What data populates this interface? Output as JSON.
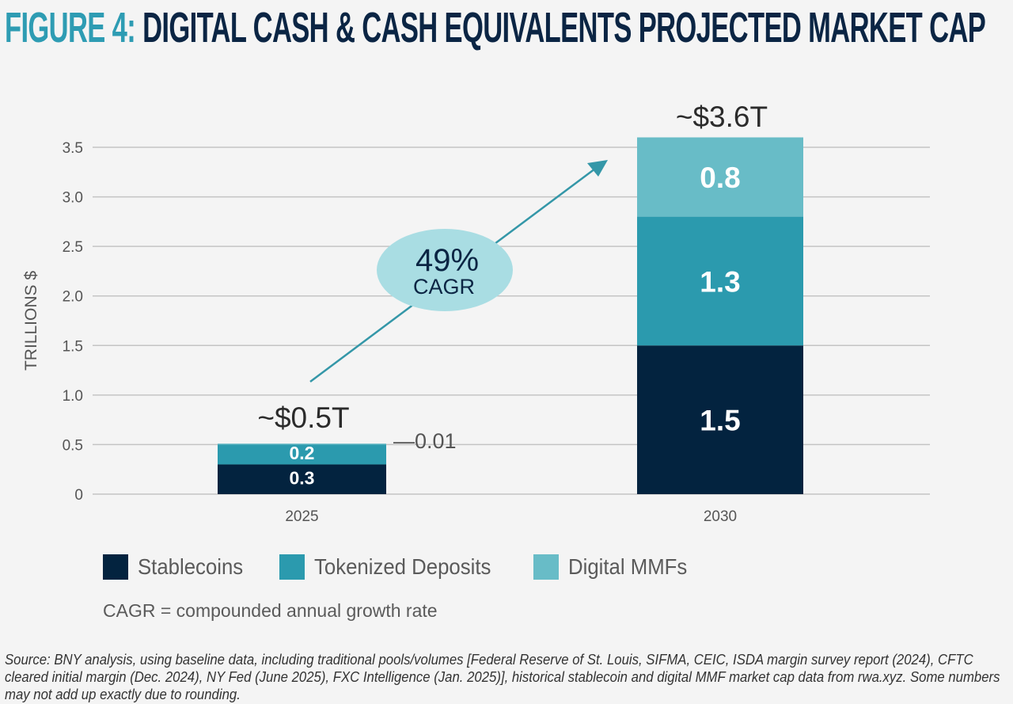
{
  "title": {
    "figure_label": "FIGURE 4:",
    "text": "DIGITAL CASH & CASH EQUIVALENTS PROJECTED MARKET CAP"
  },
  "colors": {
    "figure_label": "#2e9cb3",
    "title": "#0b2544",
    "stablecoins": "#03233f",
    "tokenized_deposits": "#2b9aae",
    "digital_mmfs": "#68bcc7",
    "cagr_bubble": "#a9dde3",
    "arrow": "#3497a8"
  },
  "chart_data": {
    "type": "bar",
    "stacked": true,
    "title": "Digital Cash & Cash Equivalents Projected Market Cap",
    "xlabel": "",
    "ylabel": "TRILLIONS $",
    "ylim": [
      0,
      3.5
    ],
    "yticks": [
      0,
      0.5,
      1.0,
      1.5,
      2.0,
      2.5,
      3.0,
      3.5
    ],
    "ytick_labels": [
      "0",
      "0.5",
      "1.0",
      "1.5",
      "2.0",
      "2.5",
      "3.0",
      "3.5"
    ],
    "grid": true,
    "categories": [
      "2025",
      "2030"
    ],
    "series": [
      {
        "name": "Stablecoins",
        "values": [
          0.3,
          1.5
        ],
        "labels": [
          "0.3",
          "1.5"
        ]
      },
      {
        "name": "Tokenized Deposits",
        "values": [
          0.2,
          1.3
        ],
        "labels": [
          "0.2",
          "1.3"
        ]
      },
      {
        "name": "Digital MMFs",
        "values": [
          0.01,
          0.8
        ],
        "labels": [
          "0.01",
          "0.8"
        ]
      }
    ],
    "totals": [
      "~$0.5T",
      "~$3.6T"
    ],
    "annotations": [
      {
        "text": "49%",
        "subtext": "CAGR",
        "type": "growth-arrow",
        "from": "2025",
        "to": "2030"
      },
      {
        "text": "—0.01",
        "type": "callout",
        "category": "2025",
        "series": "Digital MMFs"
      }
    ],
    "legend": {
      "placement": "bottom-left",
      "entries": [
        "Stablecoins",
        "Tokenized Deposits",
        "Digital MMFs"
      ]
    }
  },
  "note": "CAGR = compounded annual growth rate",
  "source": "Source: BNY analysis, using baseline data, including traditional pools/volumes [Federal Reserve of St. Louis, SIFMA, CEIC, ISDA margin survey report (2024), CFTC cleared initial margin (Dec. 2024), NY Fed (June 2025), FXC Intelligence (Jan. 2025)], historical stablecoin and digital MMF market cap data from rwa.xyz. Some numbers may not add up exactly due to rounding."
}
